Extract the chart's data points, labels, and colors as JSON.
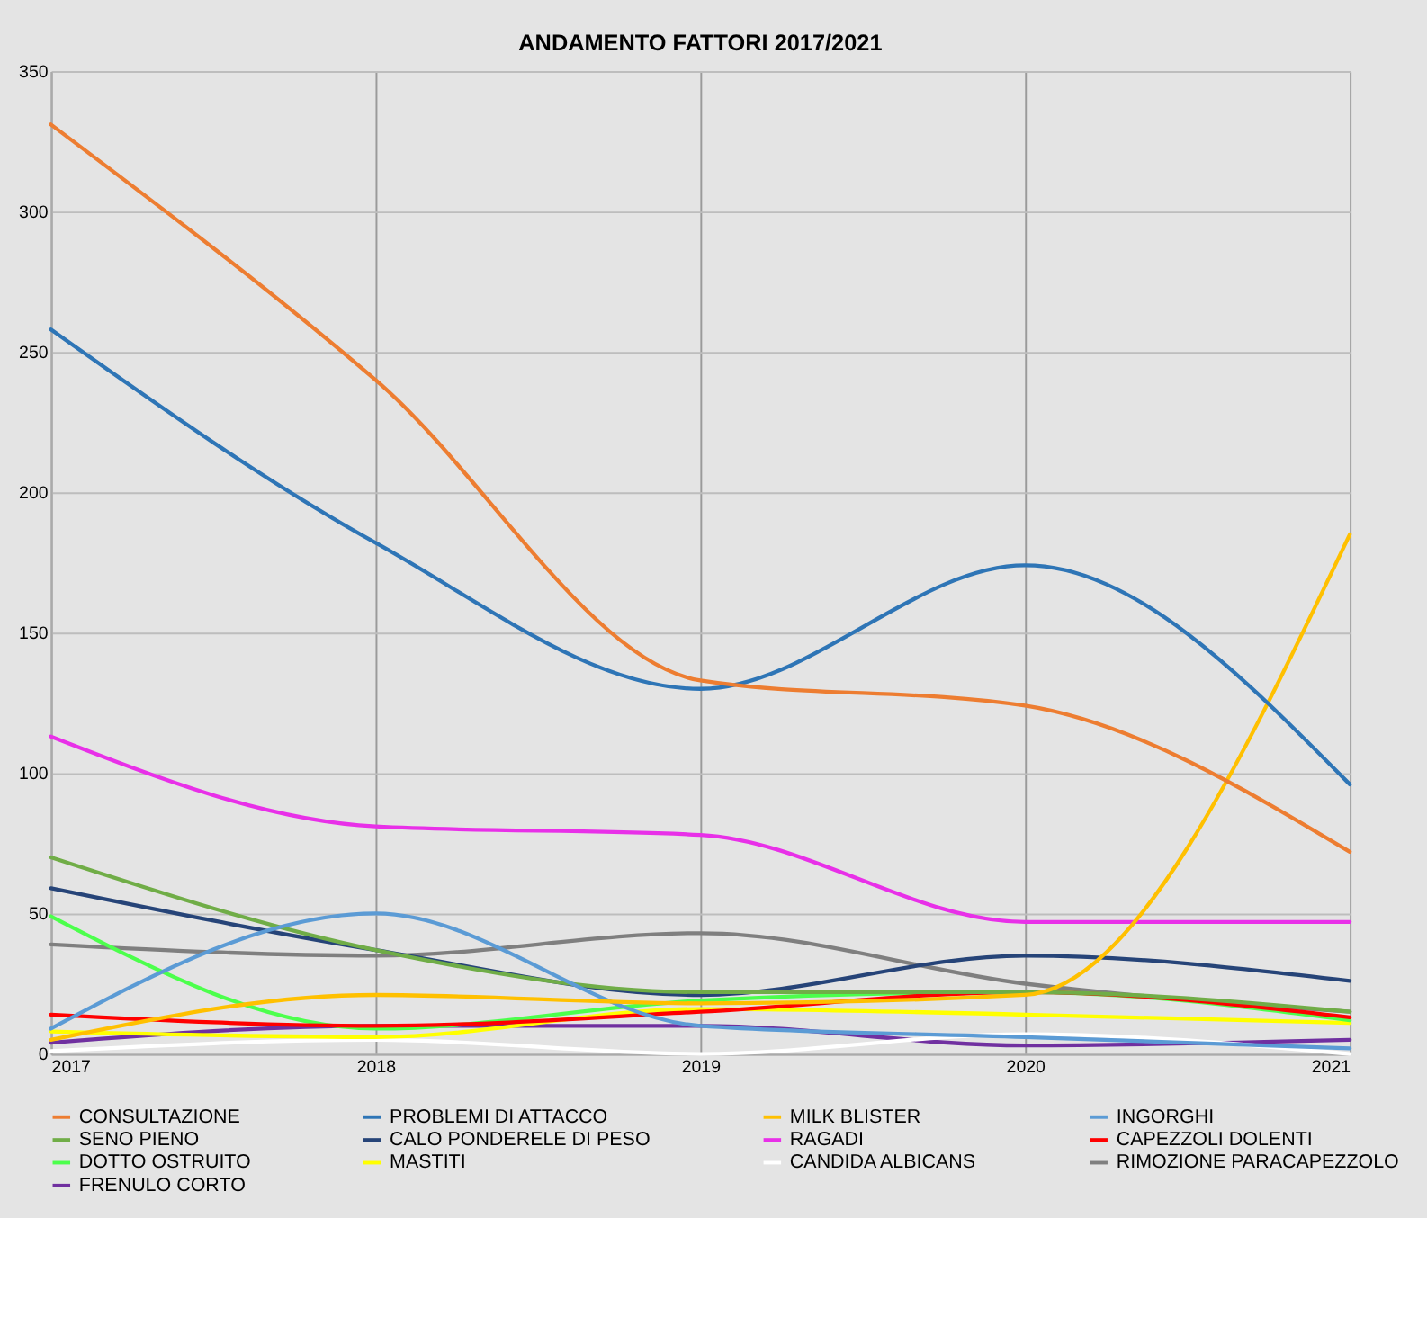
{
  "chart_data": {
    "type": "line",
    "title": "ANDAMENTO FATTORI 2017/2021",
    "x": [
      2017,
      2018,
      2019,
      2020,
      2021
    ],
    "xlim": [
      2017,
      2021
    ],
    "xticks": [
      2017,
      2018,
      2019,
      2020,
      2021
    ],
    "ylim": [
      0,
      350
    ],
    "yticks": [
      0,
      50,
      100,
      150,
      200,
      250,
      300,
      350
    ],
    "grid": true,
    "legend": "bottom",
    "marker": "none",
    "line_style": "solid",
    "series": [
      {
        "name": "CONSULTAZIONE",
        "color": "#ed7d31",
        "values": [
          331,
          240,
          133,
          124,
          72
        ]
      },
      {
        "name": "PROBLEMI DI ATTACCO",
        "color": "#2e75b6",
        "values": [
          258,
          182,
          130,
          174,
          96
        ]
      },
      {
        "name": "MILK BLISTER",
        "color": "#ffc000",
        "values": [
          5,
          21,
          18,
          21,
          185
        ]
      },
      {
        "name": "INGORGHI",
        "color": "#5b9bd5",
        "values": [
          9,
          50,
          10,
          6,
          2
        ]
      },
      {
        "name": "SENO PIENO",
        "color": "#70ad47",
        "values": [
          70,
          37,
          22,
          22,
          15
        ]
      },
      {
        "name": "CALO PONDERELE DI PESO",
        "color": "#264478",
        "values": [
          59,
          37,
          21,
          35,
          26
        ]
      },
      {
        "name": "RAGADI",
        "color": "#e830e8",
        "values": [
          113,
          81,
          78,
          47,
          47
        ]
      },
      {
        "name": "CAPEZZOLI DOLENTI",
        "color": "#ff0000",
        "values": [
          14,
          10,
          15,
          22,
          13
        ]
      },
      {
        "name": "DOTTO OSTRUITO",
        "color": "#4cff4c",
        "values": [
          49,
          9,
          19,
          22,
          12
        ]
      },
      {
        "name": "MASTITI",
        "color": "#ffff00",
        "values": [
          8,
          6,
          16,
          14,
          11
        ]
      },
      {
        "name": "CANDIDA ALBICANS",
        "color": "#ffffff",
        "values": [
          1,
          5,
          0,
          7,
          0
        ]
      },
      {
        "name": "RIMOZIONE PARACAPEZZOLO",
        "color": "#7f7f7f",
        "values": [
          39,
          35,
          43,
          25,
          15
        ]
      },
      {
        "name": "FRENULO CORTO",
        "color": "#7030a0",
        "values": [
          4,
          10,
          10,
          3,
          5
        ]
      }
    ]
  }
}
